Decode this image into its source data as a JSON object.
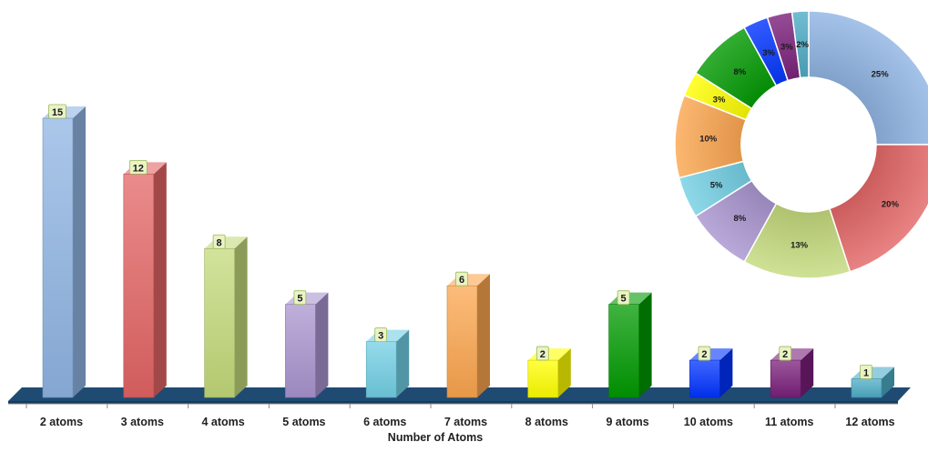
{
  "chart_data": [
    {
      "type": "bar",
      "style": "3d-column",
      "title": "",
      "xlabel": "Number of Atoms",
      "ylabel": "",
      "ylim": [
        0,
        15
      ],
      "grid": false,
      "legend": "none",
      "categories": [
        "2 atoms",
        "3 atoms",
        "4 atoms",
        "5 atoms",
        "6 atoms",
        "7 atoms",
        "8 atoms",
        "9 atoms",
        "10 atoms",
        "11 atoms",
        "12 atoms"
      ],
      "values": [
        15,
        12,
        8,
        5,
        3,
        6,
        2,
        5,
        2,
        2,
        1
      ],
      "data_labels": [
        "15",
        "12",
        "8",
        "5",
        "3",
        "6",
        "2",
        "5",
        "2",
        "2",
        "1"
      ],
      "colors": [
        "#8fb4e3",
        "#e36464",
        "#c3d97a",
        "#a894cf",
        "#72cfe4",
        "#fba54e",
        "#ffff00",
        "#009900",
        "#0033ff",
        "#7a1f7a",
        "#4dacc6"
      ]
    },
    {
      "type": "pie",
      "style": "doughnut",
      "title": "",
      "legend": "none",
      "categories": [
        "2 atoms",
        "3 atoms",
        "4 atoms",
        "5 atoms",
        "6 atoms",
        "7 atoms",
        "8 atoms",
        "9 atoms",
        "10 atoms",
        "11 atoms",
        "12 atoms"
      ],
      "values": [
        25,
        20,
        13,
        8,
        5,
        10,
        3,
        8,
        3,
        3,
        2
      ],
      "data_labels": [
        "25%",
        "20%",
        "13%",
        "8%",
        "5%",
        "10%",
        "3%",
        "8%",
        "3%",
        "3%",
        "2%"
      ],
      "colors": [
        "#8fb4e3",
        "#e36464",
        "#c3d97a",
        "#a894cf",
        "#72cfe4",
        "#fba54e",
        "#ffff00",
        "#009900",
        "#0033ff",
        "#7a1f7a",
        "#4dacc6"
      ]
    }
  ],
  "colors": {
    "floor_top": "#1f4b73",
    "floor_front": "#163a5c",
    "label_box": "#eaf3c4",
    "label_border": "#9bb85a"
  }
}
